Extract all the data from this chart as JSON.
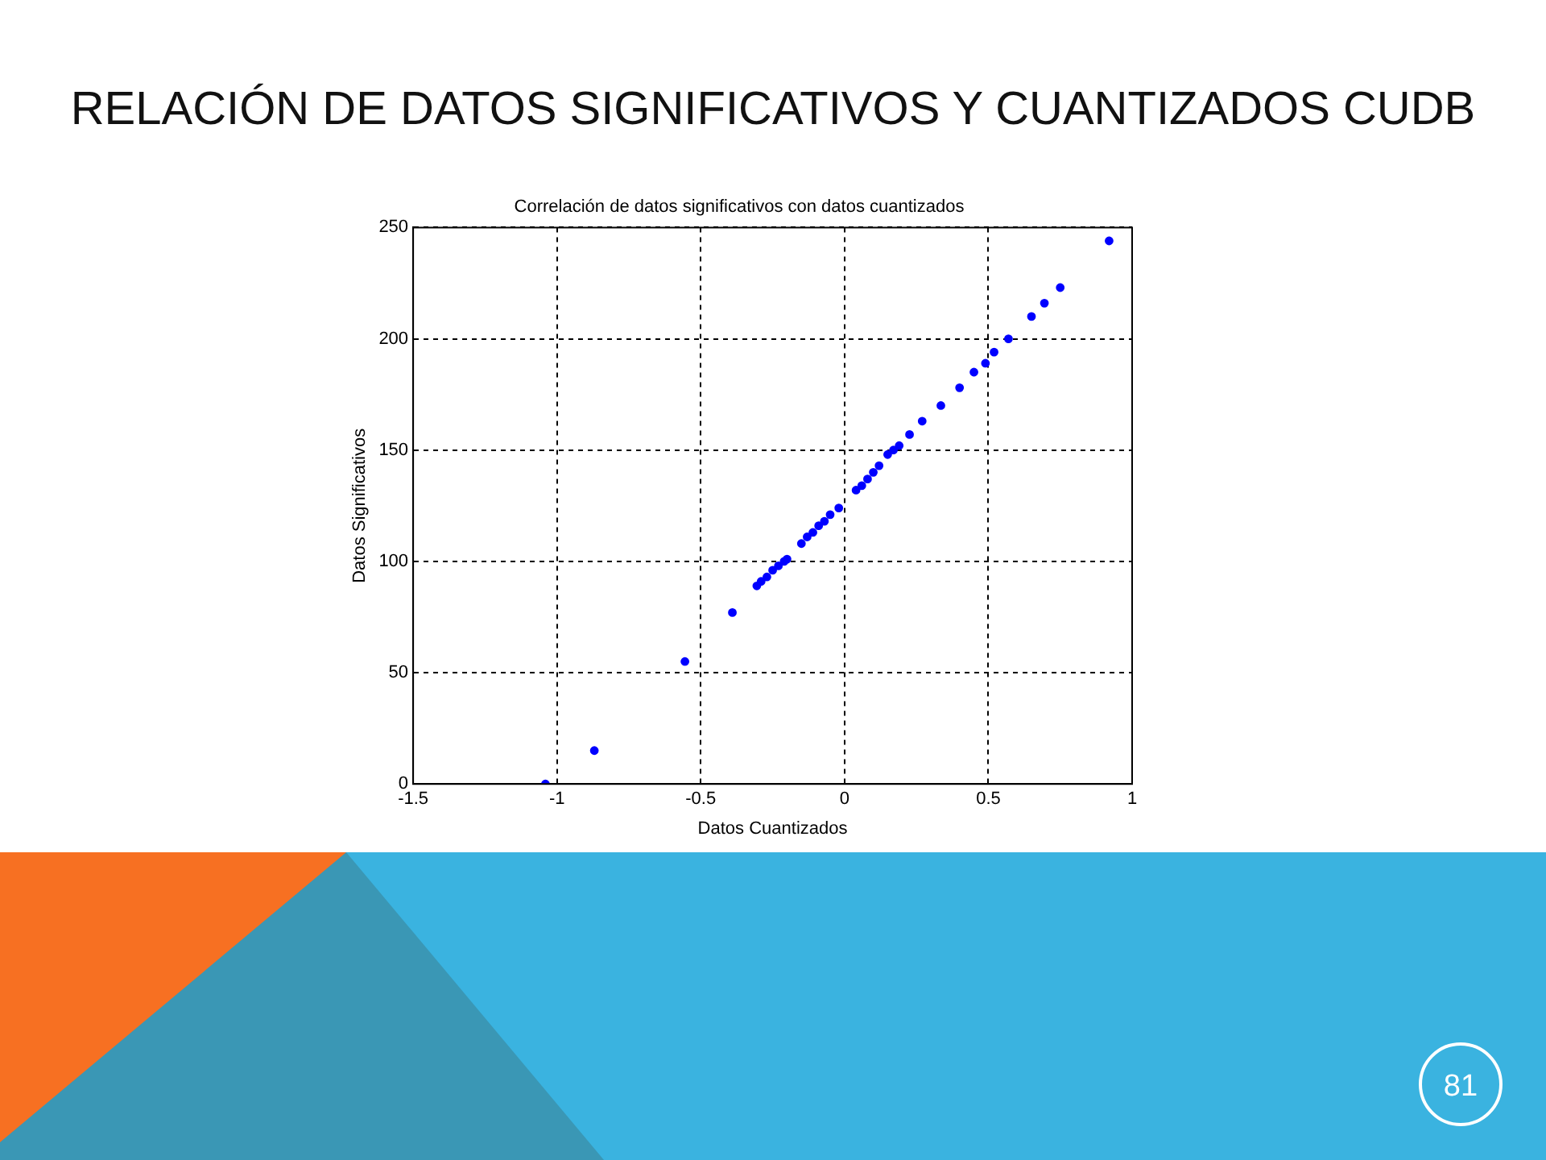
{
  "chart_data": {
    "type": "scatter",
    "title": "Correlación de datos significativos con datos cuantizados",
    "xlabel": "Datos Cuantizados",
    "ylabel": "Datos Significativos",
    "x": [
      -1.04,
      -0.87,
      -0.555,
      -0.39,
      -0.305,
      -0.29,
      -0.27,
      -0.25,
      -0.23,
      -0.21,
      -0.2,
      -0.15,
      -0.13,
      -0.11,
      -0.09,
      -0.07,
      -0.05,
      -0.02,
      0.04,
      0.06,
      0.08,
      0.1,
      0.12,
      0.15,
      0.17,
      0.19,
      0.226,
      0.27,
      0.335,
      0.4,
      0.45,
      0.49,
      0.52,
      0.57,
      0.65,
      0.695,
      0.75,
      0.92
    ],
    "series": [
      {
        "color": "#0000ff",
        "values": [
          0,
          15,
          55,
          77,
          89,
          91,
          93,
          96,
          98,
          100,
          101,
          108,
          111,
          113,
          116,
          118,
          121,
          124,
          132,
          134,
          137,
          140,
          143,
          148,
          150,
          152,
          157,
          163,
          170,
          178,
          185,
          189,
          194,
          200,
          210,
          216,
          223,
          244
        ]
      }
    ],
    "xlim": [
      -1.5,
      1
    ],
    "xticks": [
      -1.5,
      -1,
      -0.5,
      0,
      0.5,
      1
    ],
    "ylim": [
      0,
      250
    ],
    "yticks": [
      0,
      50,
      100,
      150,
      200,
      250
    ],
    "grid": true,
    "marker": "circle",
    "annotations": [
      "RELACIÓN DE DATOS SIGNIFICATIVOS Y CUANTIZADOS CUDB",
      "81"
    ]
  }
}
